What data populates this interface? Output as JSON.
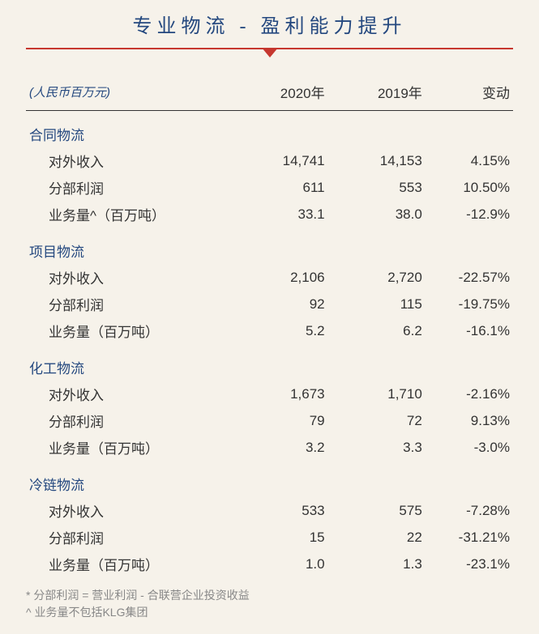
{
  "title": "专业物流 - 盈利能力提升",
  "header": {
    "unit": "(人民币百万元)",
    "y2020": "2020年",
    "y2019": "2019年",
    "change": "变动"
  },
  "colors": {
    "accent_blue": "#24487f",
    "rule_red": "#c6372f",
    "background": "#f6f2ea",
    "text": "#333333",
    "foot": "#888888"
  },
  "sections": [
    {
      "name": "合同物流",
      "rows": [
        {
          "label": "对外收入",
          "y2020": "14,741",
          "y2019": "14,153",
          "change": "4.15%"
        },
        {
          "label": "分部利润",
          "y2020": "611",
          "y2019": "553",
          "change": "10.50%"
        },
        {
          "label": "业务量^（百万吨）",
          "y2020": "33.1",
          "y2019": "38.0",
          "change": "-12.9%"
        }
      ]
    },
    {
      "name": "项目物流",
      "rows": [
        {
          "label": "对外收入",
          "y2020": "2,106",
          "y2019": "2,720",
          "change": "-22.57%"
        },
        {
          "label": "分部利润",
          "y2020": "92",
          "y2019": "115",
          "change": "-19.75%"
        },
        {
          "label": "业务量（百万吨）",
          "y2020": "5.2",
          "y2019": "6.2",
          "change": "-16.1%"
        }
      ]
    },
    {
      "name": "化工物流",
      "rows": [
        {
          "label": "对外收入",
          "y2020": "1,673",
          "y2019": "1,710",
          "change": "-2.16%"
        },
        {
          "label": "分部利润",
          "y2020": "79",
          "y2019": "72",
          "change": "9.13%"
        },
        {
          "label": "业务量（百万吨）",
          "y2020": "3.2",
          "y2019": "3.3",
          "change": "-3.0%"
        }
      ]
    },
    {
      "name": "冷链物流",
      "rows": [
        {
          "label": "对外收入",
          "y2020": "533",
          "y2019": "575",
          "change": "-7.28%"
        },
        {
          "label": "分部利润",
          "y2020": "15",
          "y2019": "22",
          "change": "-31.21%"
        },
        {
          "label": "业务量（百万吨）",
          "y2020": "1.0",
          "y2019": "1.3",
          "change": "-23.1%"
        }
      ]
    }
  ],
  "footnotes": [
    "* 分部利润 = 营业利润 - 合联营企业投资收益",
    "^ 业务量不包括KLG集团"
  ]
}
